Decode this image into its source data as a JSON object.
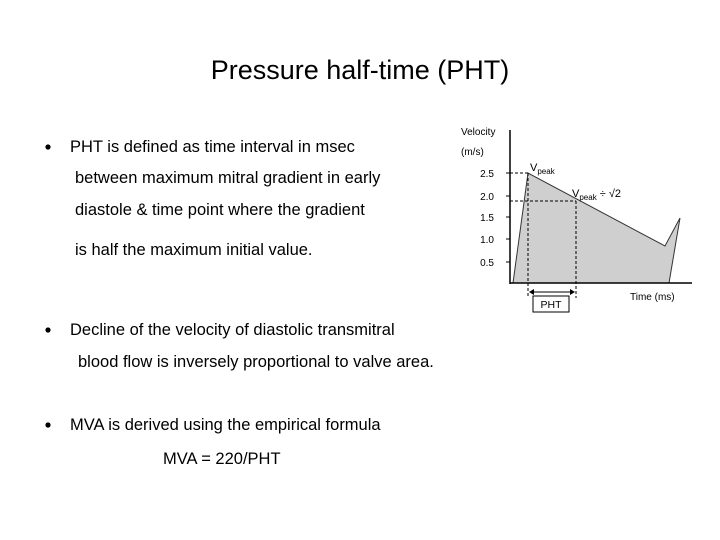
{
  "title": "Pressure half-time (PHT)",
  "bullets": [
    {
      "lines": [
        "PHT is defined as time interval in msec",
        "between maximum mitral gradient in early",
        "diastole  & time point where the gradient",
        "is half the maximum initial value."
      ]
    },
    {
      "lines": [
        "Decline of the velocity of diastolic transmitral",
        "blood flow is inversely proportional to valve area."
      ]
    },
    {
      "lines": [
        "MVA is derived using the empirical formula",
        "MVA = 220/PHT"
      ]
    }
  ],
  "figure": {
    "y_label": [
      "Velocity",
      "(m/s)"
    ],
    "x_label": "Time (ms)",
    "y_ticks": [
      "2.5",
      "2.0",
      "1.5",
      "1.0",
      "0.5"
    ],
    "peak_label": {
      "main": "V",
      "sub": "peak"
    },
    "half_label": {
      "main": "V",
      "sub": "peak",
      "rest": " ÷ √2"
    },
    "interval_label": "PHT"
  }
}
